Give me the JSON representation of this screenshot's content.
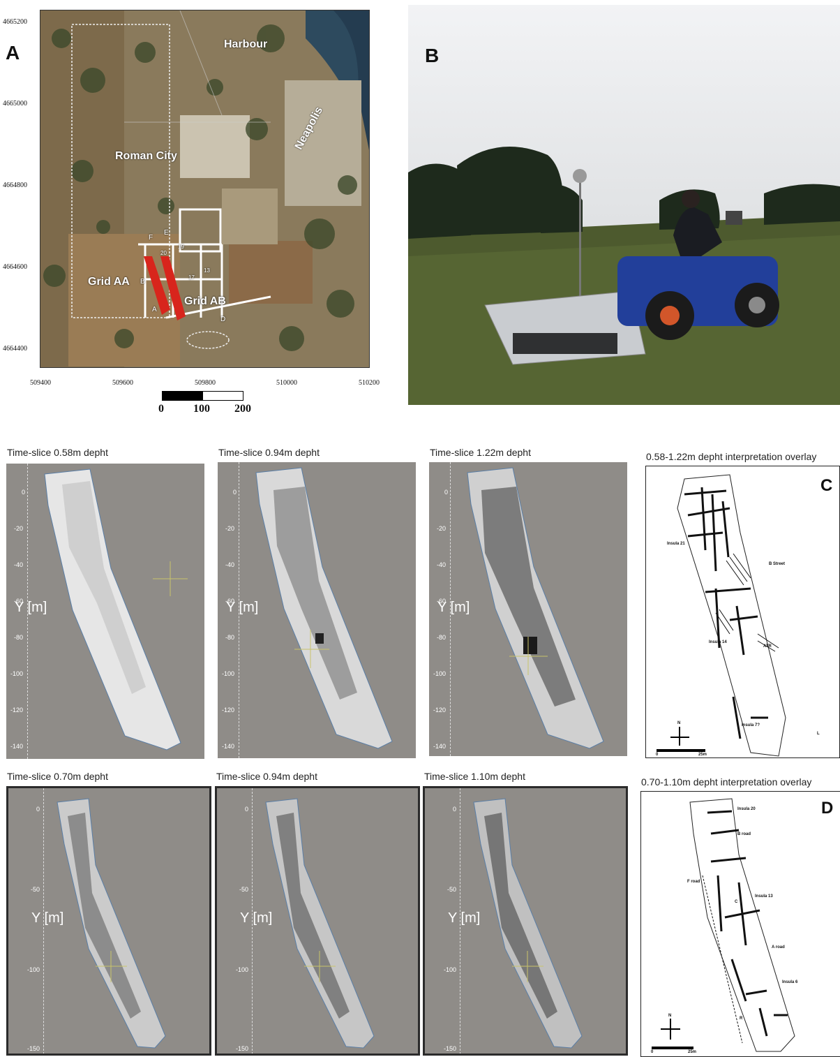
{
  "panelA": {
    "letter": "A",
    "y_ticks": [
      "4665200",
      "4665000",
      "4664800",
      "4664600",
      "4664400"
    ],
    "x_ticks": [
      "509400",
      "509600",
      "509800",
      "510000",
      "510200"
    ],
    "scale_labels": [
      "0",
      "100",
      "200"
    ],
    "labels": {
      "harbour": "Harbour",
      "roman_city": "Roman City",
      "neapolis": "Neapolis",
      "grid_aa": "Grid AA",
      "grid_ab": "Grid AB",
      "f": "F",
      "e": "E",
      "b": "B",
      "a": "A",
      "d": "D",
      "n20": "20",
      "n19": "19",
      "n17": "17",
      "n13": "13"
    }
  },
  "panelB": {
    "letter": "B"
  },
  "row1": {
    "slices": [
      {
        "title": "Time-slice 0.58m depht",
        "yticks": [
          "0",
          "-20",
          "-40",
          "-60",
          "-80",
          "-100",
          "-120",
          "-140"
        ],
        "ylabel": "Y [m]"
      },
      {
        "title": "Time-slice 0.94m depht",
        "yticks": [
          "0",
          "-20",
          "-40",
          "-60",
          "-80",
          "-100",
          "-120",
          "-140"
        ],
        "ylabel": "Y [m]"
      },
      {
        "title": "Time-slice 1.22m depht",
        "yticks": [
          "0",
          "-20",
          "-40",
          "-60",
          "-80",
          "-100",
          "-120",
          "-140"
        ],
        "ylabel": "Y [m]"
      }
    ],
    "interp": {
      "title": "0.58-1.22m depht interpretation overlay",
      "letter": "C",
      "labels": {
        "insula21": "Insula 21",
        "bstreet": "B Street",
        "insula14": "Insula 14",
        "atr": "ATR",
        "insula7": "Insula 7?",
        "l": "L",
        "north": "N",
        "s0": "0",
        "s25": "25m"
      }
    }
  },
  "row2": {
    "slices": [
      {
        "title": "Time-slice 0.70m depht",
        "yticks": [
          "0",
          "-50",
          "-100",
          "-150"
        ],
        "ylabel": "Y [m]"
      },
      {
        "title": "Time-slice 0.94m depht",
        "yticks": [
          "0",
          "-50",
          "-100",
          "-150"
        ],
        "ylabel": "Y [m]"
      },
      {
        "title": "Time-slice 1.10m depht",
        "yticks": [
          "0",
          "-50",
          "-100",
          "-150"
        ],
        "ylabel": "Y [m]"
      }
    ],
    "interp": {
      "title": "0.70-1.10m depht interpretation overlay",
      "letter": "D",
      "labels": {
        "insula20": "Insula 20",
        "broad": "B road",
        "froad": "F road",
        "insula13": "Insula 13",
        "c": "C",
        "aroad": "A road",
        "insula6": "Insula 6",
        "r": "R",
        "north": "N",
        "s0": "0",
        "s25": "25m"
      }
    }
  }
}
